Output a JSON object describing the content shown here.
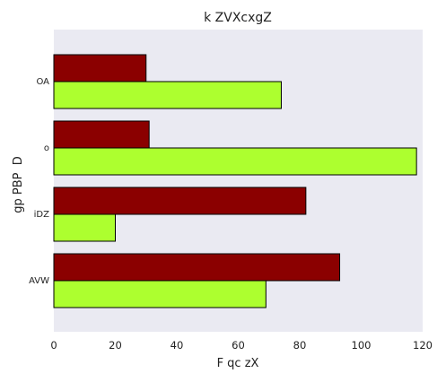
{
  "chart_data": {
    "type": "bar",
    "orientation": "horizontal",
    "title": "k ZVXcxgZ",
    "xlabel": "F qc zX",
    "ylabel": "gp PBP  D",
    "categories": [
      "OA",
      "o",
      "iDZ",
      "AVW"
    ],
    "series": [
      {
        "values": [
          30,
          31,
          82,
          93
        ],
        "color": "#8b0000"
      },
      {
        "values": [
          74,
          118,
          20,
          69
        ],
        "color": "#adff2f"
      }
    ],
    "xlim": [
      0,
      120
    ],
    "xticks": [
      0,
      20,
      40,
      60,
      80,
      100,
      120
    ],
    "grid": false,
    "legend": "none",
    "plot_background": "#eaeaf2"
  }
}
